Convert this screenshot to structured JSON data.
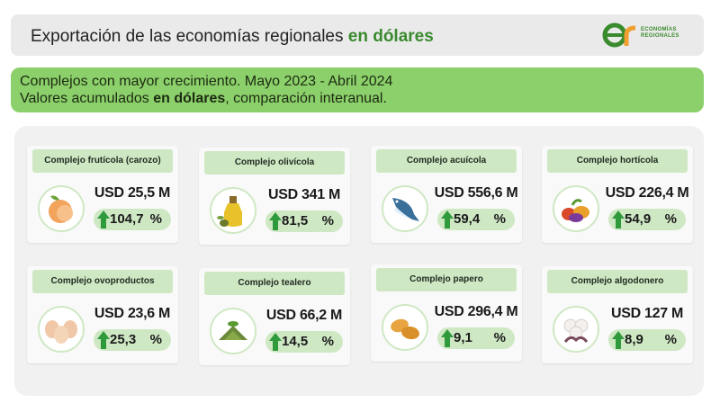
{
  "header": {
    "title_prefix": "Exportación de las economías regionales",
    "title_highlight": "en dólares",
    "logo_line1": "ECONOMÍAS",
    "logo_line2": "REGIONALES",
    "logo_color": "#3a8a2e"
  },
  "subtitle": {
    "line1": "Complejos con mayor crecimiento. Mayo 2023 - Abril 2024",
    "line2_prefix": "Valores acumulados",
    "line2_bold": "en dólares",
    "line2_suffix": ", comparación interanual."
  },
  "colors": {
    "accent_green": "#8bd06a",
    "pale_green": "#cfe8c4",
    "arrow_green": "#2f9a3b"
  },
  "complexes": [
    {
      "name": "Complejo frutícola (carozo)",
      "amount": "USD 25,5 M",
      "growth": "104,7",
      "unit": "%",
      "icon": "peach-icon"
    },
    {
      "name": "Complejo olivícola",
      "amount": "USD 341 M",
      "growth": "81,5",
      "unit": "%",
      "icon": "olive-oil-icon"
    },
    {
      "name": "Complejo acuícola",
      "amount": "USD 556,6 M",
      "growth": "59,4",
      "unit": "%",
      "icon": "fish-icon"
    },
    {
      "name": "Complejo hortícola",
      "amount": "USD 226,4 M",
      "growth": "54,9",
      "unit": "%",
      "icon": "vegetables-icon"
    },
    {
      "name": "Complejo ovoproductos",
      "amount": "USD 23,6 M",
      "growth": "25,3",
      "unit": "%",
      "icon": "eggs-icon"
    },
    {
      "name": "Complejo tealero",
      "amount": "USD 66,2 M",
      "growth": "14,5",
      "unit": "%",
      "icon": "tea-icon"
    },
    {
      "name": "Complejo papero",
      "amount": "USD 296,4 M",
      "growth": "9,1",
      "unit": "%",
      "icon": "potato-icon"
    },
    {
      "name": "Complejo algodonero",
      "amount": "USD 127 M",
      "growth": "8,9",
      "unit": "%",
      "icon": "cotton-icon"
    }
  ]
}
